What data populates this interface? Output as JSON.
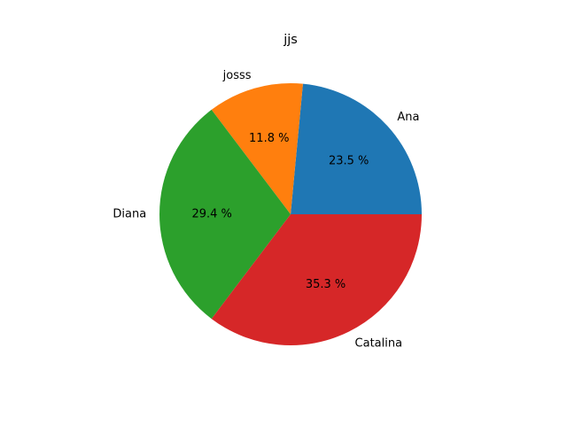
{
  "chart_data": {
    "type": "pie",
    "title": "jjs",
    "slices": [
      {
        "label": "Ana",
        "value": 23.5,
        "pct_label": "23.5 %",
        "color": "#1f77b4"
      },
      {
        "label": "josss",
        "value": 11.8,
        "pct_label": "11.8 %",
        "color": "#ff7f0e"
      },
      {
        "label": "Diana",
        "value": 29.4,
        "pct_label": "29.4 %",
        "color": "#2ca02c"
      },
      {
        "label": "Catalina",
        "value": 35.3,
        "pct_label": "35.3 %",
        "color": "#d62728"
      }
    ],
    "start_angle_deg": 0,
    "direction": "counterclockwise",
    "legend": "none"
  }
}
